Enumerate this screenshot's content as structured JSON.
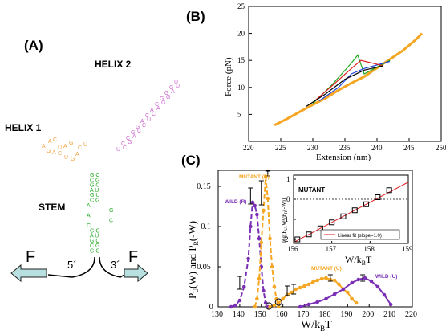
{
  "panels": {
    "A": {
      "label": "(A)",
      "helix1_label": "HELIX 1",
      "helix2_label": "HELIX 2",
      "stem_label": "STEM",
      "force_left": "F",
      "force_right": "F",
      "end5": "5´",
      "end3": "3´",
      "stem_seq": [
        "G C",
        "C G",
        "G C",
        "A U",
        "G U",
        "C G",
        "A",
        "G",
        "A",
        "C",
        "C",
        "G C",
        "A U",
        "G C",
        "C G",
        "G C"
      ],
      "helix1_seq": [
        "A",
        "A",
        "C",
        "G",
        "A",
        "C",
        "U",
        "A",
        "G",
        "U",
        "G",
        "A",
        "C",
        "U"
      ],
      "helix2_seq": [
        "U",
        "C",
        "C",
        "G",
        "G",
        "A",
        "C",
        "A",
        "C",
        "G",
        "G",
        "G",
        "U",
        "C",
        "G",
        "A",
        "C",
        "C",
        "U",
        "C",
        "A",
        "G",
        "G",
        "A",
        "U"
      ]
    },
    "B": {
      "label": "(B)",
      "ylabel": "Force (pN)",
      "xlabel": "Extension (nm)",
      "xticks": [
        "220",
        "225",
        "230",
        "235",
        "240",
        "245",
        "250"
      ],
      "yticks": [
        "5",
        "10",
        "15",
        "20",
        "25"
      ]
    },
    "C": {
      "label": "(C)",
      "xlabel": "W/k",
      "xlabel_sub": "B",
      "xlabel_end": "T",
      "ylabel": "P_U(W) and P_R(-W)",
      "xticks": [
        "130",
        "140",
        "150",
        "160",
        "170",
        "180",
        "190",
        "200",
        "210",
        "220"
      ],
      "yticks": [
        "0",
        "0.05",
        "0.1",
        "0.15"
      ],
      "series_labels": {
        "mutant_r": "MUTANT (R)",
        "wild_r": "WILD (R)",
        "mutant_u": "MUTANT (U)",
        "wild_u": "WILD (U)"
      },
      "inset": {
        "title": "MUTANT",
        "xlabel": "W/k",
        "xlabel_sub": "B",
        "xlabel_end": "T",
        "ylabel": "log(P_U(W)/P_R(-W))",
        "xticks": [
          "156",
          "157",
          "158",
          "159"
        ],
        "yticks": [
          "-2",
          "-1",
          "0",
          "1"
        ],
        "legend": "Linear fit (slope=1.0)"
      }
    }
  },
  "colors": {
    "green": "#22aa22",
    "purple": "#7a2fb5",
    "orange": "#f5a623",
    "magenta": "#cc66cc",
    "helix1": "#f0a040",
    "arrow": "#b8e0e0",
    "red": "#dd2222",
    "blue": "#2244dd",
    "black": "#000000"
  },
  "chart_data": [
    {
      "type": "line",
      "panel": "B",
      "xlabel": "Extension (nm)",
      "ylabel": "Force (pN)",
      "xlim": [
        220,
        250
      ],
      "ylim": [
        0,
        25
      ],
      "series": [
        {
          "color": "#f5a623",
          "x": [
            224,
            226,
            228,
            230,
            232,
            234,
            236,
            238,
            240,
            242,
            244,
            246,
            247
          ],
          "y": [
            3,
            4.2,
            5.5,
            6.8,
            8,
            9.5,
            10.8,
            12,
            13.6,
            15.2,
            16.8,
            18.8,
            20
          ]
        },
        {
          "color": "#22aa22",
          "x": [
            230,
            233,
            236,
            237,
            238,
            242
          ],
          "y": [
            7,
            10.5,
            14.5,
            16,
            12.5,
            15
          ]
        },
        {
          "color": "#2244dd",
          "x": [
            231,
            234,
            236,
            238,
            242
          ],
          "y": [
            7.5,
            10,
            12.5,
            13.5,
            14.8
          ]
        },
        {
          "color": "#dd2222",
          "x": [
            230,
            233,
            236,
            237.5,
            241
          ],
          "y": [
            7.2,
            10.3,
            13.5,
            15,
            14
          ]
        },
        {
          "color": "#000000",
          "x": [
            229,
            232,
            235,
            238,
            241
          ],
          "y": [
            6.5,
            8.8,
            11.5,
            13.2,
            14
          ]
        }
      ]
    },
    {
      "type": "line",
      "panel": "C",
      "xlabel": "W/kBT",
      "ylabel": "PU(W) and PR(-W)",
      "xlim": [
        130,
        220
      ],
      "ylim": [
        0,
        0.17
      ],
      "series": [
        {
          "name": "WILD (R)",
          "color": "#7a2fb5",
          "x": [
            136,
            138,
            140,
            142,
            144,
            145,
            146,
            147,
            148,
            149,
            150,
            151,
            152,
            153
          ],
          "y": [
            0,
            0.002,
            0.008,
            0.025,
            0.06,
            0.1,
            0.13,
            0.126,
            0.115,
            0.085,
            0.05,
            0.02,
            0.005,
            0
          ]
        },
        {
          "name": "MUTANT (R)",
          "color": "#f5a623",
          "x": [
            147,
            148,
            149,
            150,
            151,
            152,
            153,
            154,
            155,
            156,
            157,
            158
          ],
          "y": [
            0,
            0.01,
            0.035,
            0.08,
            0.12,
            0.162,
            0.135,
            0.085,
            0.05,
            0.025,
            0.01,
            0
          ]
        },
        {
          "name": "MUTANT (U)",
          "color": "#f5a623",
          "x": [
            154,
            156,
            158,
            160,
            162,
            164,
            166,
            168,
            170,
            172,
            174,
            176,
            178,
            180,
            182,
            184,
            186,
            188,
            190,
            192,
            194
          ],
          "y": [
            0,
            0.002,
            0.005,
            0.01,
            0.015,
            0.018,
            0.022,
            0.024,
            0.026,
            0.028,
            0.031,
            0.033,
            0.035,
            0.036,
            0.034,
            0.033,
            0.028,
            0.022,
            0.018,
            0.01,
            0.005
          ]
        },
        {
          "name": "WILD (U)",
          "color": "#7a2fb5",
          "x": [
            168,
            172,
            176,
            180,
            184,
            188,
            192,
            195,
            198,
            201,
            204,
            207,
            210
          ],
          "y": [
            0,
            0.003,
            0.006,
            0.01,
            0.016,
            0.022,
            0.03,
            0.034,
            0.036,
            0.032,
            0.025,
            0.015,
            0.003
          ]
        }
      ]
    },
    {
      "type": "scatter",
      "panel": "C-inset",
      "title": "MUTANT",
      "xlabel": "W/kBT",
      "ylabel": "log(PU(W)/PR(-W))",
      "xlim": [
        156,
        159
      ],
      "ylim": [
        -2.2,
        1.2
      ],
      "series": [
        {
          "name": "data",
          "x": [
            156.1,
            156.4,
            156.7,
            157.0,
            157.3,
            157.6,
            157.9,
            158.2,
            158.5
          ],
          "y": [
            -2.0,
            -1.75,
            -1.45,
            -1.15,
            -0.85,
            -0.55,
            -0.25,
            0.1,
            0.45
          ]
        },
        {
          "name": "Linear fit (slope=1.0)",
          "color": "#dd2222",
          "x": [
            156,
            159
          ],
          "y": [
            -2.15,
            0.85
          ]
        }
      ]
    }
  ]
}
